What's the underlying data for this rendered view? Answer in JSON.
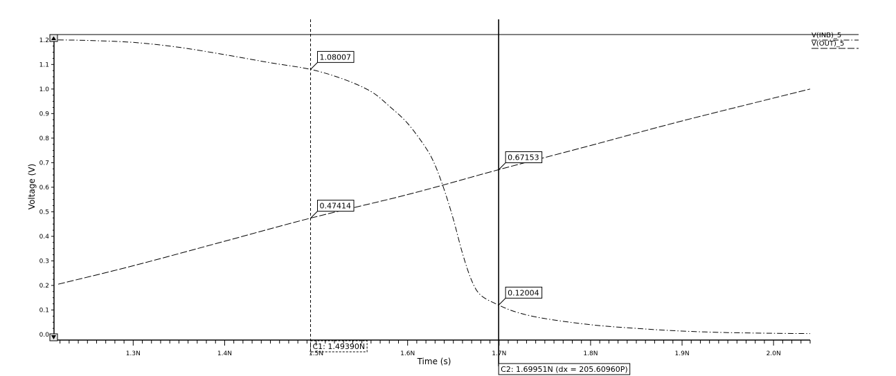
{
  "chart_data": {
    "type": "line",
    "xlabel": "Time (s)",
    "ylabel": "Voltage (V)",
    "xlim": [
      1.218,
      2.04
    ],
    "ylim": [
      0.0,
      1.205
    ],
    "x_ticks": [
      {
        "v": 1.3,
        "label": "1.3N"
      },
      {
        "v": 1.4,
        "label": "1.4N"
      },
      {
        "v": 1.5,
        "label": "1.5N"
      },
      {
        "v": 1.6,
        "label": "1.6N"
      },
      {
        "v": 1.7,
        "label": "1.7N"
      },
      {
        "v": 1.8,
        "label": "1.8N"
      },
      {
        "v": 1.9,
        "label": "1.9N"
      },
      {
        "v": 2.0,
        "label": "2.0N"
      }
    ],
    "y_ticks": [
      {
        "v": 0.0,
        "label": "0.0"
      },
      {
        "v": 0.1,
        "label": "0.1"
      },
      {
        "v": 0.2,
        "label": "0.2"
      },
      {
        "v": 0.3,
        "label": "0.3"
      },
      {
        "v": 0.4,
        "label": "0.4"
      },
      {
        "v": 0.5,
        "label": "0.5"
      },
      {
        "v": 0.6,
        "label": "0.6"
      },
      {
        "v": 0.7,
        "label": "0.7"
      },
      {
        "v": 0.8,
        "label": "0.8"
      },
      {
        "v": 0.9,
        "label": "0.9"
      },
      {
        "v": 1.0,
        "label": "1.0"
      },
      {
        "v": 1.1,
        "label": "1.1"
      },
      {
        "v": 1.2,
        "label": "1.2"
      }
    ],
    "series": [
      {
        "name": "V(INB)_5",
        "style": "dash-dot",
        "x": [
          1.218,
          1.25,
          1.3,
          1.35,
          1.4,
          1.45,
          1.4939,
          1.53,
          1.56,
          1.58,
          1.6,
          1.62,
          1.63,
          1.64,
          1.65,
          1.66,
          1.67,
          1.68,
          1.6995,
          1.72,
          1.75,
          1.8,
          1.85,
          1.9,
          1.95,
          2.0,
          2.04
        ],
        "values": [
          1.2,
          1.198,
          1.19,
          1.17,
          1.14,
          1.107,
          1.08007,
          1.04,
          0.99,
          0.93,
          0.86,
          0.76,
          0.69,
          0.59,
          0.47,
          0.33,
          0.22,
          0.16,
          0.12004,
          0.09,
          0.065,
          0.04,
          0.025,
          0.014,
          0.008,
          0.005,
          0.004
        ]
      },
      {
        "name": "V(OUT)_5",
        "style": "long-dash",
        "x": [
          1.218,
          1.3,
          1.4,
          1.4939,
          1.6,
          1.6995,
          1.8,
          1.9,
          2.04
        ],
        "values": [
          0.205,
          0.28,
          0.38,
          0.47414,
          0.57,
          0.67153,
          0.77,
          0.87,
          1.0
        ]
      }
    ],
    "cursors": [
      {
        "name": "C1",
        "x": 1.4939,
        "style": "dashed",
        "label": "C1: 1.49390N"
      },
      {
        "name": "C2",
        "x": 1.69951,
        "style": "solid",
        "label": "C2: 1.69951N (dx = 205.60960P)"
      }
    ],
    "annotations": [
      {
        "x": 1.4939,
        "y": 1.08007,
        "text": "1.08007"
      },
      {
        "x": 1.4939,
        "y": 0.47414,
        "text": "0.47414"
      },
      {
        "x": 1.6995,
        "y": 0.67153,
        "text": "0.67153"
      },
      {
        "x": 1.6995,
        "y": 0.12004,
        "text": "0.12004"
      }
    ],
    "legend_position": "top-right",
    "grid": false
  },
  "colors": {
    "background": "#ffffff",
    "line": "#000000",
    "scroll_button": "#e6e6e6"
  },
  "icons": {
    "scroll_up": "triangle-up-icon",
    "scroll_down": "triangle-down-icon"
  }
}
